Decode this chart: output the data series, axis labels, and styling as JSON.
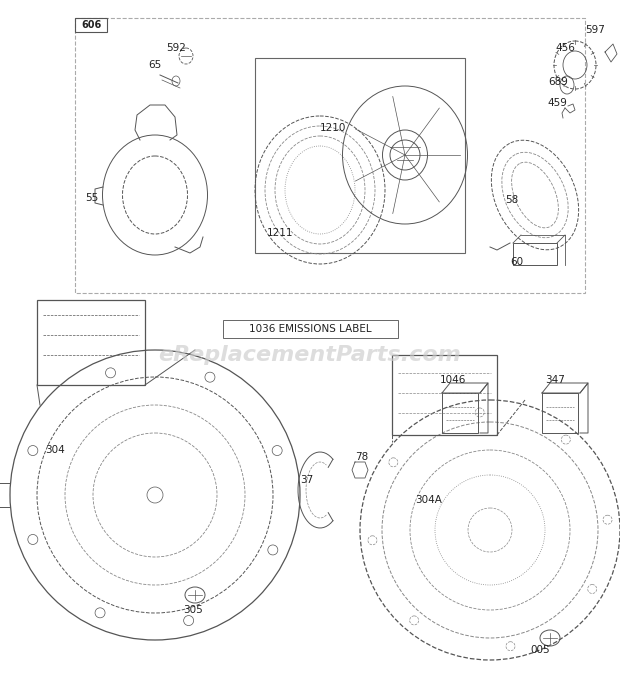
{
  "bg_color": "#ffffff",
  "watermark": "eReplacementParts.com",
  "emissions_label": "1036 EMISSIONS LABEL",
  "line_color": "#555555",
  "dashed_color": "#888888",
  "label_color": "#222222"
}
